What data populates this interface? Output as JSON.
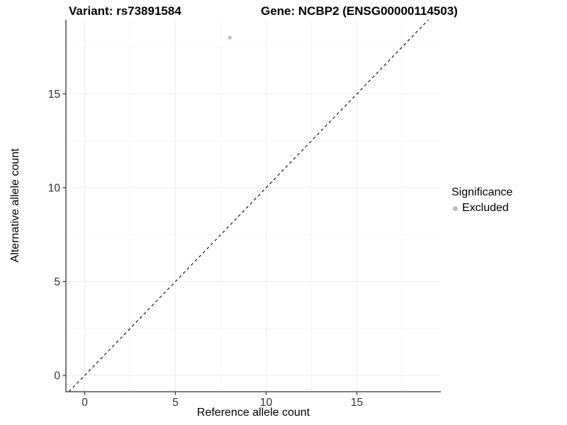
{
  "chart_data": {
    "type": "scatter",
    "title_left": "Variant: rs73891584",
    "title_right": "Gene: NCBP2 (ENSG00000114503)",
    "xlabel": "Reference allele count",
    "ylabel": "Alternative allele count",
    "xlim": [
      -1.0,
      19.6
    ],
    "ylim": [
      -0.9,
      18.9
    ],
    "xticks": [
      0,
      5,
      10,
      15
    ],
    "yticks": [
      0,
      5,
      10,
      15
    ],
    "minor_xticks": [
      2.5,
      7.5,
      12.5,
      17.5
    ],
    "minor_yticks": [
      2.5,
      7.5,
      12.5,
      17.5
    ],
    "grid": {
      "major": true,
      "minor": true
    },
    "series": [
      {
        "name": "Excluded",
        "marker": "circle",
        "color": "#bdbdbd",
        "points": [
          {
            "x": 8,
            "y": 18
          }
        ]
      }
    ],
    "reference_line": {
      "kind": "abline",
      "slope": 1,
      "intercept": 0,
      "linetype": "dashed",
      "color": "#000000"
    },
    "legend": {
      "title": "Significance",
      "position": "right",
      "entries": [
        {
          "label": "Excluded",
          "marker": "circle",
          "color": "#bdbdbd"
        }
      ]
    }
  },
  "colors": {
    "background": "#ffffff",
    "axis_line": "#333333",
    "tick_mark": "#333333",
    "tick_label": "#333333",
    "grid_major": "#ececec",
    "grid_minor": "#f6f6f6",
    "title_text": "#000000"
  }
}
